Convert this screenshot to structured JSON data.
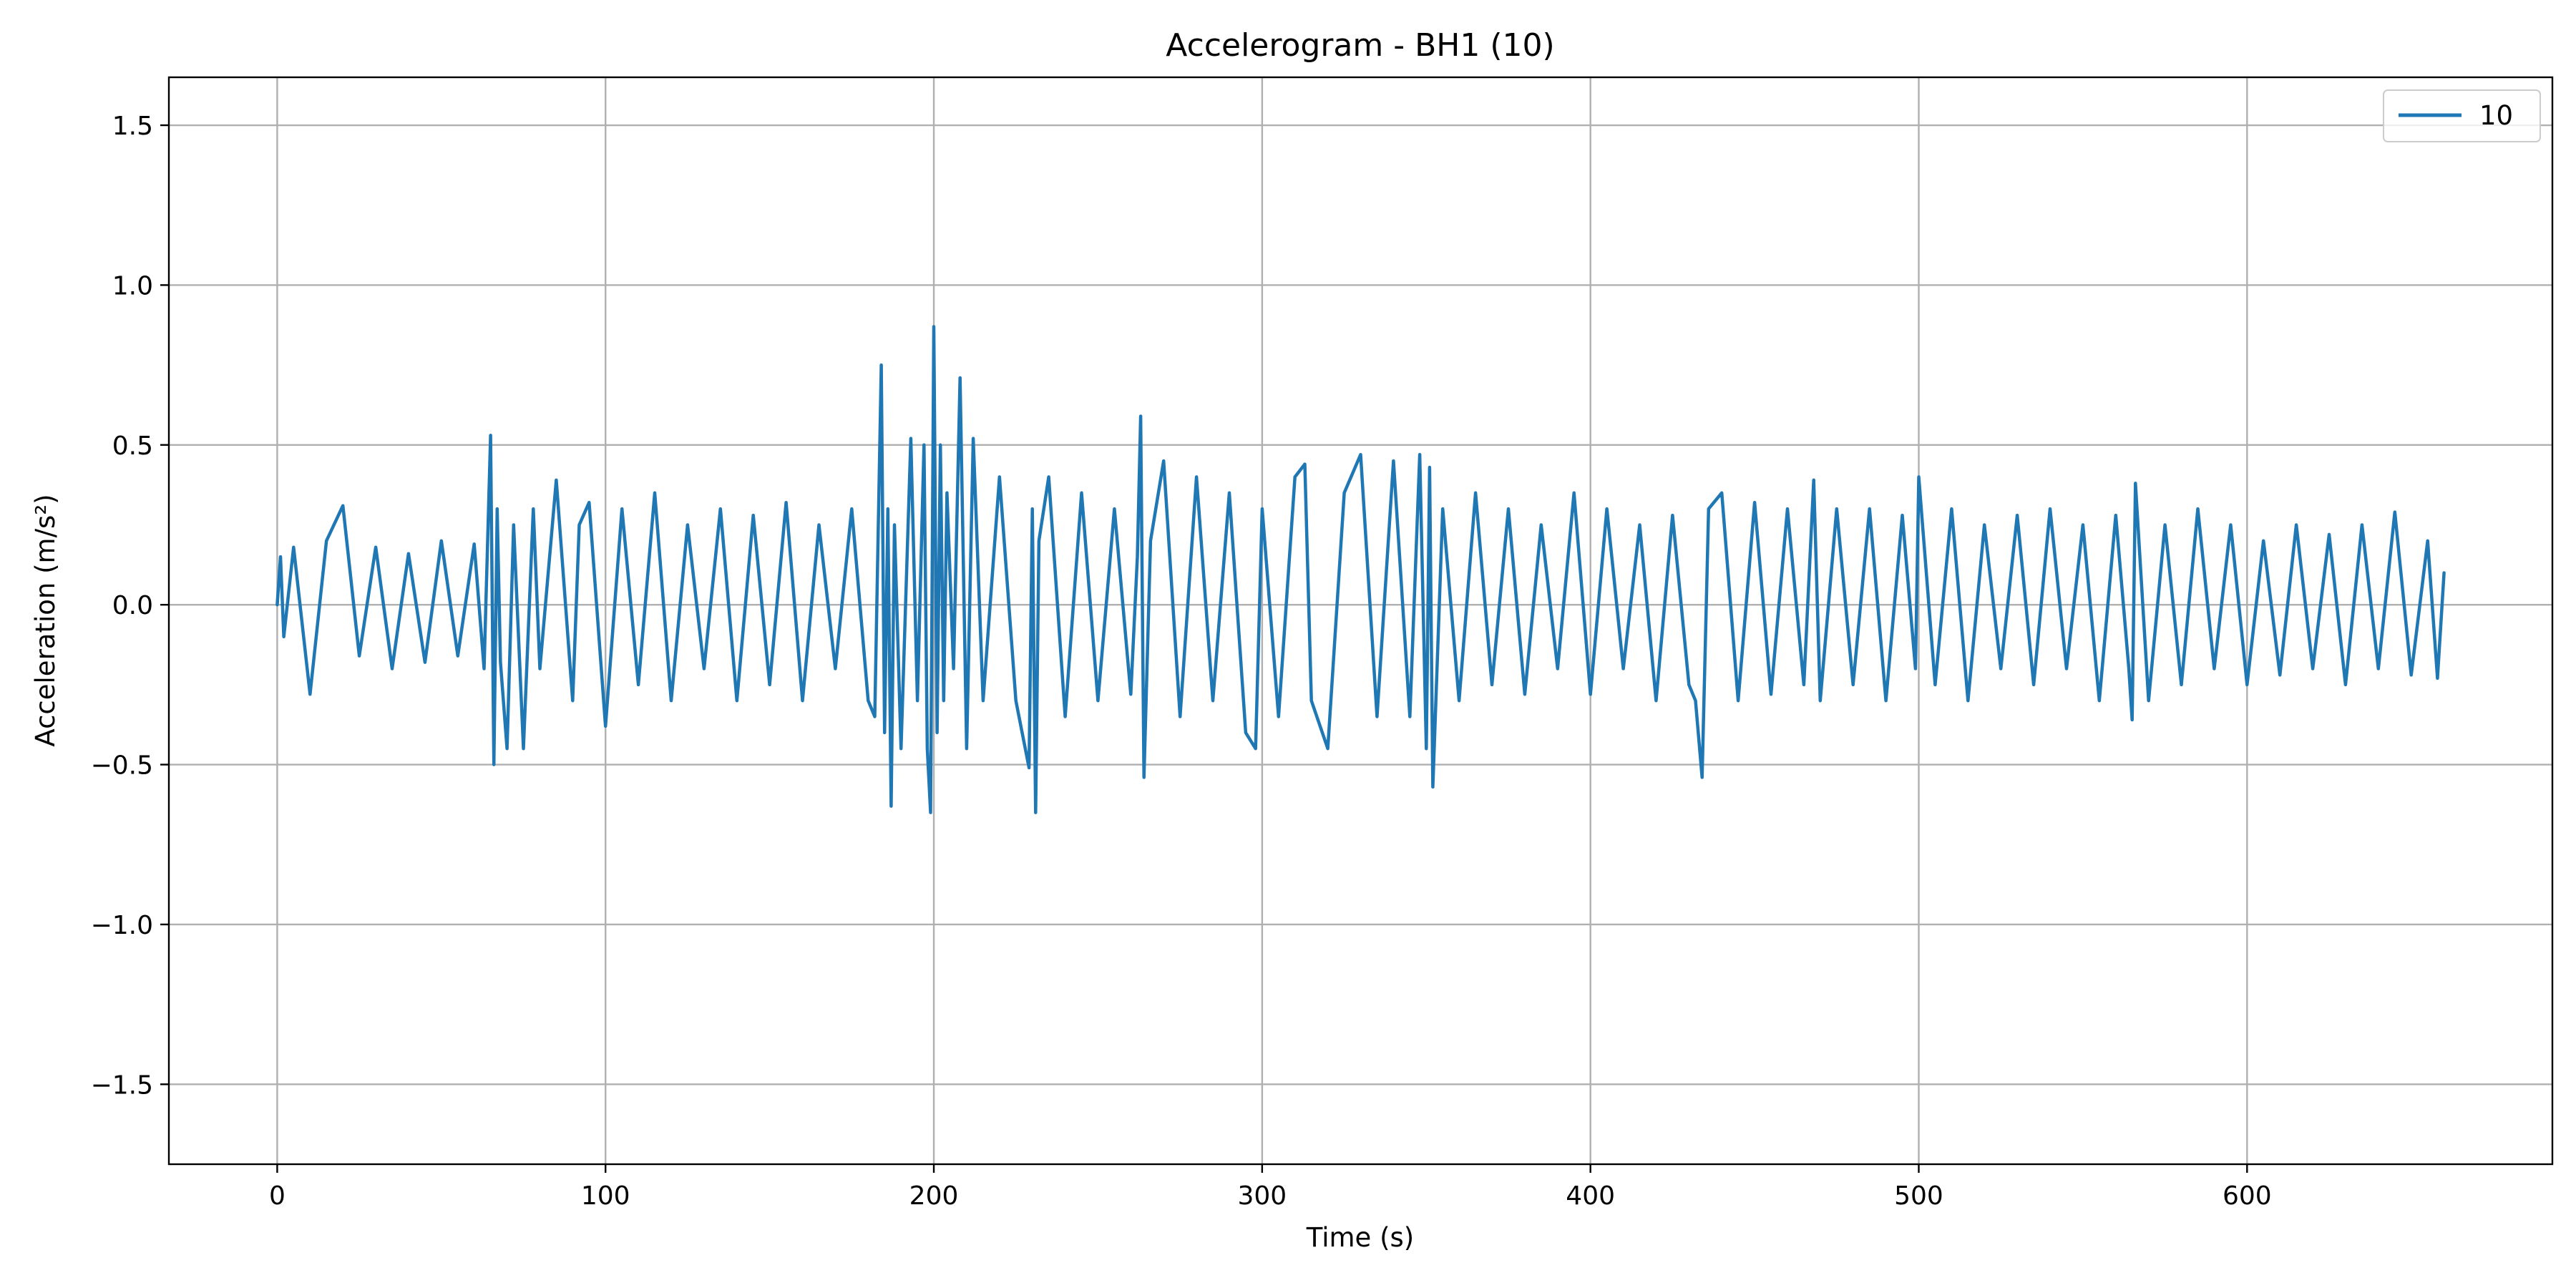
{
  "chart_data": {
    "type": "line",
    "title": "Accelerogram - BH1 (10)",
    "xlabel": "Time (s)",
    "ylabel": "Acceleration (m/s²)",
    "xlim": [
      -33,
      693
    ],
    "ylim": [
      -1.75,
      1.65
    ],
    "xticks": [
      0,
      100,
      200,
      300,
      400,
      500,
      600
    ],
    "xtick_labels": [
      "0",
      "100",
      "200",
      "300",
      "400",
      "500",
      "600"
    ],
    "yticks": [
      -1.5,
      -1.0,
      -0.5,
      0.0,
      0.5,
      1.0,
      1.5
    ],
    "ytick_labels": [
      "−1.5",
      "−1.0",
      "−0.5",
      "0.0",
      "0.5",
      "1.0",
      "1.5"
    ],
    "grid": true,
    "legend_position": "top-right",
    "colors": {
      "series": "#1f77b4",
      "grid": "#b0b0b0",
      "axes": "#000000"
    },
    "series": [
      {
        "name": "10",
        "color": "#1f77b4",
        "x": [
          0,
          1,
          2,
          5,
          10,
          15,
          20,
          25,
          30,
          35,
          40,
          45,
          50,
          55,
          60,
          63,
          65,
          66,
          67,
          68,
          70,
          72,
          75,
          78,
          80,
          85,
          90,
          92,
          95,
          100,
          105,
          110,
          115,
          120,
          125,
          130,
          135,
          140,
          145,
          150,
          155,
          160,
          165,
          170,
          175,
          180,
          182,
          184,
          185,
          186,
          187,
          188,
          190,
          193,
          195,
          197,
          198,
          199,
          200,
          201,
          202,
          203,
          204,
          206,
          208,
          210,
          212,
          215,
          220,
          225,
          229,
          230,
          231,
          232,
          235,
          240,
          245,
          250,
          255,
          260,
          262,
          263,
          264,
          266,
          270,
          275,
          280,
          285,
          290,
          295,
          298,
          300,
          305,
          310,
          313,
          315,
          320,
          325,
          330,
          335,
          340,
          345,
          348,
          350,
          351,
          352,
          355,
          360,
          365,
          370,
          375,
          380,
          385,
          390,
          395,
          400,
          405,
          410,
          415,
          420,
          425,
          430,
          432,
          434,
          436,
          440,
          445,
          450,
          455,
          460,
          465,
          468,
          470,
          475,
          480,
          485,
          490,
          495,
          499,
          500,
          505,
          510,
          515,
          520,
          525,
          530,
          535,
          540,
          545,
          550,
          555,
          560,
          564,
          565,
          566,
          570,
          575,
          580,
          585,
          590,
          595,
          600,
          605,
          610,
          615,
          620,
          625,
          630,
          635,
          640,
          645,
          650,
          655,
          658,
          660
        ],
        "values": [
          0.0,
          0.15,
          -0.1,
          0.18,
          -0.28,
          0.2,
          0.31,
          -0.16,
          0.18,
          -0.2,
          0.16,
          -0.18,
          0.2,
          -0.16,
          0.19,
          -0.2,
          0.53,
          -0.5,
          0.3,
          -0.18,
          -0.45,
          0.25,
          -0.45,
          0.3,
          -0.2,
          0.39,
          -0.3,
          0.25,
          0.32,
          -0.38,
          0.3,
          -0.25,
          0.35,
          -0.3,
          0.25,
          -0.2,
          0.3,
          -0.3,
          0.28,
          -0.25,
          0.32,
          -0.3,
          0.25,
          -0.2,
          0.3,
          -0.3,
          -0.35,
          0.75,
          -0.4,
          0.3,
          -0.63,
          0.25,
          -0.45,
          0.52,
          -0.3,
          0.5,
          -0.45,
          -0.65,
          0.87,
          -0.4,
          0.5,
          -0.3,
          0.35,
          -0.2,
          0.71,
          -0.45,
          0.52,
          -0.3,
          0.4,
          -0.3,
          -0.51,
          0.3,
          -0.65,
          0.2,
          0.4,
          -0.35,
          0.35,
          -0.3,
          0.3,
          -0.28,
          0.15,
          0.59,
          -0.54,
          0.2,
          0.45,
          -0.35,
          0.4,
          -0.3,
          0.35,
          -0.4,
          -0.45,
          0.3,
          -0.35,
          0.4,
          0.44,
          -0.3,
          -0.45,
          0.35,
          0.47,
          -0.35,
          0.45,
          -0.35,
          0.47,
          -0.45,
          0.43,
          -0.57,
          0.3,
          -0.3,
          0.35,
          -0.25,
          0.3,
          -0.28,
          0.25,
          -0.2,
          0.35,
          -0.28,
          0.3,
          -0.2,
          0.25,
          -0.3,
          0.28,
          -0.25,
          -0.3,
          -0.54,
          0.3,
          0.35,
          -0.3,
          0.32,
          -0.28,
          0.3,
          -0.25,
          0.39,
          -0.3,
          0.3,
          -0.25,
          0.3,
          -0.3,
          0.28,
          -0.2,
          0.4,
          -0.25,
          0.3,
          -0.3,
          0.25,
          -0.2,
          0.28,
          -0.25,
          0.3,
          -0.2,
          0.25,
          -0.3,
          0.28,
          -0.2,
          -0.36,
          0.38,
          -0.3,
          0.25,
          -0.25,
          0.3,
          -0.2,
          0.25,
          -0.25,
          0.2,
          -0.22,
          0.25,
          -0.2,
          0.22,
          -0.25,
          0.25,
          -0.2,
          0.29,
          -0.22,
          0.2,
          -0.23,
          0.1
        ]
      }
    ]
  }
}
